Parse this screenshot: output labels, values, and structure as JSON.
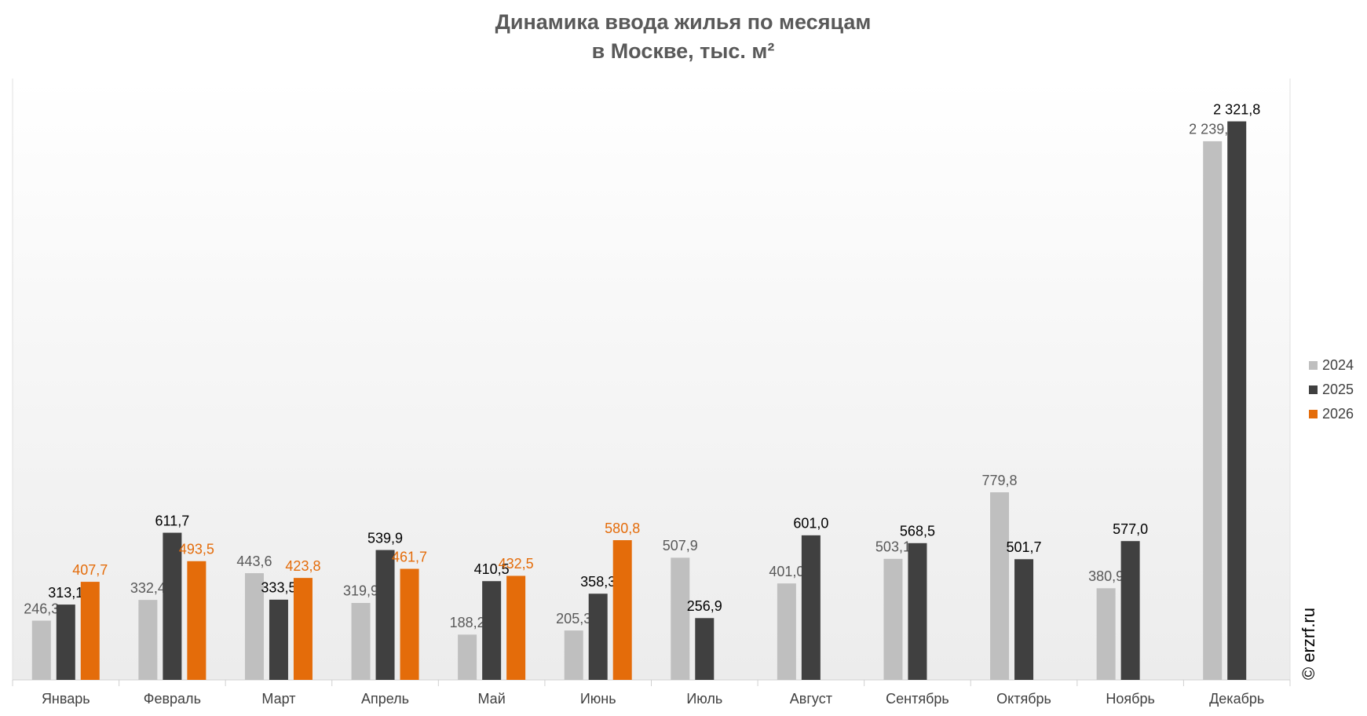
{
  "chart_data": {
    "type": "bar",
    "title": [
      "Динамика ввода жилья по месяцам",
      "в Москве, тыс. м²"
    ],
    "categories": [
      "Январь",
      "Февраль",
      "Март",
      "Апрель",
      "Май",
      "Июнь",
      "Июль",
      "Август",
      "Сентябрь",
      "Октябрь",
      "Ноябрь",
      "Декабрь"
    ],
    "series": [
      {
        "name": "2024",
        "color": "#bfbfbf",
        "label_color": "#595959",
        "values": [
          246.3,
          332.4,
          443.6,
          319.9,
          188.2,
          205.3,
          507.9,
          401.0,
          503.1,
          779.8,
          380.9,
          2239.3
        ],
        "value_labels": [
          "246,3",
          "332,4",
          "443,6",
          "319,9",
          "188,2",
          "205,3",
          "507,9",
          "401,0",
          "503,1",
          "779,8",
          "380,9",
          "2 239,3"
        ]
      },
      {
        "name": "2025",
        "color": "#404040",
        "label_color": "#000000",
        "values": [
          313.1,
          611.7,
          333.5,
          539.9,
          410.5,
          358.3,
          256.9,
          601.0,
          568.5,
          501.7,
          577.0,
          2321.8
        ],
        "value_labels": [
          "313,1",
          "611,7",
          "333,5",
          "539,9",
          "410,5",
          "358,3",
          "256,9",
          "601,0",
          "568,5",
          "501,7",
          "577,0",
          "2 321,8"
        ]
      },
      {
        "name": "2026",
        "color": "#e46c0a",
        "label_color": "#e46c0a",
        "values": [
          407.7,
          493.5,
          423.8,
          461.7,
          432.5,
          580.8,
          null,
          null,
          null,
          null,
          null,
          null
        ],
        "value_labels": [
          "407,7",
          "493,5",
          "423,8",
          "461,7",
          "432,5",
          "580,8",
          null,
          null,
          null,
          null,
          null,
          null
        ]
      }
    ],
    "ylim": [
      0,
      2500
    ],
    "legend": "right",
    "watermark": "© erzrf.ru"
  }
}
